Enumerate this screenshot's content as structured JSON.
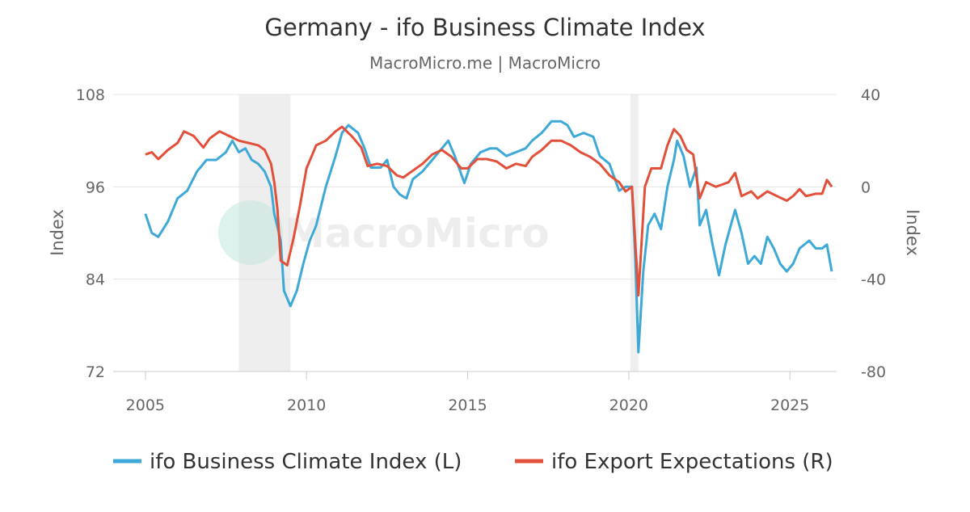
{
  "chart_data": {
    "type": "line",
    "title": "Germany - ifo Business Climate Index",
    "subtitle": "MacroMicro.me | MacroMicro",
    "watermark": "MacroMicro",
    "ylabel": "Index",
    "y2label": "Index",
    "xlim": [
      2004,
      2026.45
    ],
    "xticks": [
      2005,
      2010,
      2015,
      2020,
      2025
    ],
    "ylim": [
      72,
      108
    ],
    "yticks": [
      72,
      84,
      96,
      108
    ],
    "y2lim": [
      -80,
      40
    ],
    "y2ticks": [
      -80,
      -40,
      0,
      40
    ],
    "grid": true,
    "legend": "bottom",
    "shaded_periods": [
      [
        2007.9,
        2009.5
      ],
      [
        2020.05,
        2020.3
      ]
    ],
    "series": [
      {
        "name": "ifo Business Climate Index (L)",
        "color": "#3ea9d6",
        "axis": "y",
        "x": [
          2005.0,
          2005.2,
          2005.4,
          2005.7,
          2006.0,
          2006.3,
          2006.6,
          2006.9,
          2007.2,
          2007.5,
          2007.7,
          2007.9,
          2008.1,
          2008.3,
          2008.5,
          2008.7,
          2008.9,
          2009.0,
          2009.2,
          2009.3,
          2009.5,
          2009.7,
          2009.9,
          2010.1,
          2010.3,
          2010.6,
          2010.9,
          2011.1,
          2011.3,
          2011.6,
          2011.8,
          2012.0,
          2012.3,
          2012.5,
          2012.7,
          2012.9,
          2013.1,
          2013.3,
          2013.6,
          2013.9,
          2014.1,
          2014.4,
          2014.6,
          2014.9,
          2015.1,
          2015.4,
          2015.7,
          2015.9,
          2016.2,
          2016.5,
          2016.8,
          2017.0,
          2017.3,
          2017.6,
          2017.9,
          2018.1,
          2018.3,
          2018.6,
          2018.9,
          2019.1,
          2019.4,
          2019.7,
          2019.9,
          2020.1,
          2020.2,
          2020.3,
          2020.45,
          2020.6,
          2020.8,
          2021.0,
          2021.2,
          2021.4,
          2021.5,
          2021.7,
          2021.9,
          2022.1,
          2022.2,
          2022.4,
          2022.6,
          2022.8,
          2023.0,
          2023.3,
          2023.5,
          2023.7,
          2023.9,
          2024.1,
          2024.3,
          2024.5,
          2024.7,
          2024.9,
          2025.1,
          2025.3,
          2025.6,
          2025.8,
          2026.0,
          2026.15,
          2026.3
        ],
        "values": [
          92.5,
          90,
          89.5,
          91.5,
          94.5,
          95.5,
          98,
          99.5,
          99.5,
          100.5,
          102,
          100.5,
          101,
          99.5,
          99,
          98,
          96,
          92.5,
          89,
          82.5,
          80.5,
          82.5,
          86,
          89,
          91,
          96,
          100,
          103,
          104,
          103,
          101,
          98.5,
          98.5,
          99.5,
          96,
          95,
          94.5,
          97,
          98,
          99.5,
          100.5,
          102,
          100,
          96.5,
          99,
          100.5,
          101,
          101,
          100,
          100.5,
          101,
          102,
          103,
          104.5,
          104.5,
          104,
          102.5,
          103,
          102.5,
          100,
          99,
          95.5,
          96,
          96,
          87,
          74.5,
          85,
          91,
          92.5,
          90.5,
          96,
          99.5,
          102,
          100,
          96,
          98.5,
          91,
          93,
          88.5,
          84.5,
          88.5,
          93,
          90,
          86,
          87,
          86,
          89.5,
          88,
          86,
          85,
          86,
          88,
          89,
          88,
          88,
          88.5,
          85
        ]
      },
      {
        "name": "ifo Export Expectations (R)",
        "color": "#e2503a",
        "axis": "y2",
        "x": [
          2005.0,
          2005.2,
          2005.4,
          2005.7,
          2006.0,
          2006.2,
          2006.5,
          2006.8,
          2007.0,
          2007.3,
          2007.6,
          2007.9,
          2008.2,
          2008.5,
          2008.7,
          2008.9,
          2009.0,
          2009.1,
          2009.2,
          2009.4,
          2009.6,
          2009.8,
          2010.0,
          2010.3,
          2010.6,
          2010.9,
          2011.1,
          2011.4,
          2011.7,
          2011.9,
          2012.2,
          2012.5,
          2012.8,
          2013.0,
          2013.3,
          2013.6,
          2013.9,
          2014.2,
          2014.5,
          2014.8,
          2015.0,
          2015.3,
          2015.6,
          2015.9,
          2016.2,
          2016.5,
          2016.8,
          2017.0,
          2017.3,
          2017.6,
          2017.9,
          2018.2,
          2018.5,
          2018.8,
          2019.1,
          2019.4,
          2019.7,
          2019.9,
          2020.1,
          2020.3,
          2020.5,
          2020.7,
          2021.0,
          2021.2,
          2021.4,
          2021.6,
          2021.8,
          2022.0,
          2022.2,
          2022.4,
          2022.7,
          2022.9,
          2023.1,
          2023.3,
          2023.5,
          2023.8,
          2024.0,
          2024.3,
          2024.6,
          2024.9,
          2025.1,
          2025.3,
          2025.5,
          2025.8,
          2026.0,
          2026.15,
          2026.3
        ],
        "values": [
          14,
          15,
          12,
          16,
          19,
          24,
          22,
          17,
          21,
          24,
          22,
          20,
          19,
          18,
          16,
          10,
          2,
          -10,
          -32,
          -34,
          -22,
          -8,
          8,
          18,
          20,
          24,
          26,
          22,
          17,
          9,
          10,
          9,
          5,
          4,
          7,
          10,
          14,
          16,
          13,
          8,
          8,
          12,
          12,
          11,
          8,
          10,
          9,
          13,
          16,
          20,
          20,
          18,
          15,
          13,
          10,
          5,
          2,
          -2,
          0,
          -47,
          0,
          8,
          8,
          18,
          25,
          22,
          16,
          14,
          -5,
          2,
          0,
          1,
          2,
          6,
          -4,
          -2,
          -5,
          -2,
          -4,
          -6,
          -4,
          -1,
          -4,
          -3,
          -3,
          3,
          0
        ]
      }
    ]
  }
}
